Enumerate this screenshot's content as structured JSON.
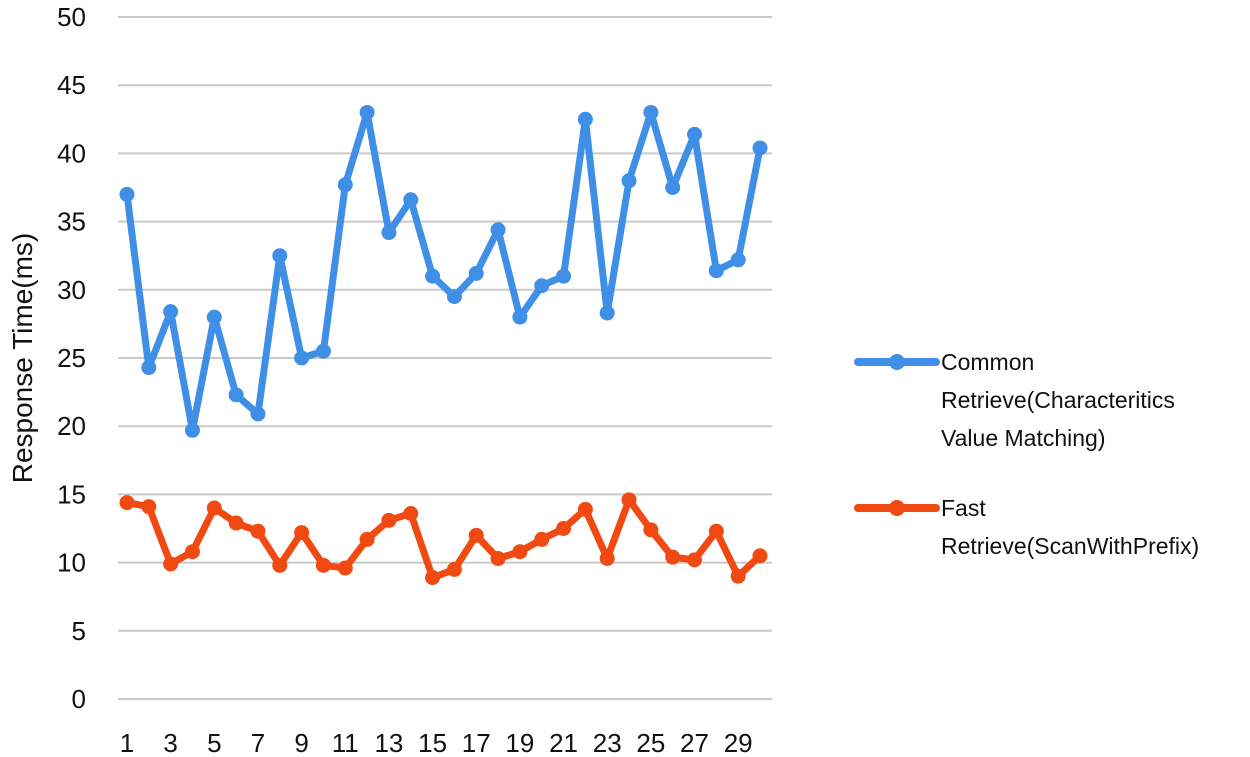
{
  "chart_data": {
    "type": "line",
    "title": "",
    "xlabel": "",
    "ylabel": "Response Time(ms)",
    "ylim": [
      0,
      50
    ],
    "yticks": [
      0,
      5,
      10,
      15,
      20,
      25,
      30,
      35,
      40,
      45,
      50
    ],
    "x": [
      1,
      2,
      3,
      4,
      5,
      6,
      7,
      8,
      9,
      10,
      11,
      12,
      13,
      14,
      15,
      16,
      17,
      18,
      19,
      20,
      21,
      22,
      23,
      24,
      25,
      26,
      27,
      28,
      29,
      30
    ],
    "xtick_labels": [
      "1",
      "3",
      "5",
      "7",
      "9",
      "11",
      "13",
      "15",
      "17",
      "19",
      "21",
      "23",
      "25",
      "27",
      "29"
    ],
    "grid": "horizontal",
    "legend_position": "right",
    "series": [
      {
        "name": "Common Retrieve(Characteritics Value Matching)",
        "legend_lines": [
          "Common",
          "Retrieve(Characteritics",
          "Value Matching)"
        ],
        "color": "#3f8fe6",
        "values": [
          37.0,
          24.3,
          28.4,
          19.7,
          28.0,
          22.3,
          20.9,
          32.5,
          25.0,
          25.5,
          37.7,
          43.0,
          34.2,
          36.6,
          31.0,
          29.5,
          31.2,
          34.4,
          28.0,
          30.3,
          31.0,
          42.5,
          28.3,
          38.0,
          43.0,
          37.5,
          41.4,
          31.4,
          32.2,
          40.4
        ]
      },
      {
        "name": "Fast Retrieve(ScanWithPrefix)",
        "legend_lines": [
          "Fast",
          "Retrieve(ScanWithPrefix)"
        ],
        "color": "#f04a12",
        "values": [
          14.4,
          14.1,
          9.9,
          10.8,
          14.0,
          12.9,
          12.3,
          9.8,
          12.2,
          9.8,
          9.6,
          11.7,
          13.1,
          13.6,
          8.9,
          9.5,
          12.0,
          10.3,
          10.8,
          11.7,
          12.5,
          13.9,
          10.3,
          14.6,
          12.4,
          10.4,
          10.2,
          12.3,
          9.0,
          10.5
        ]
      }
    ]
  }
}
